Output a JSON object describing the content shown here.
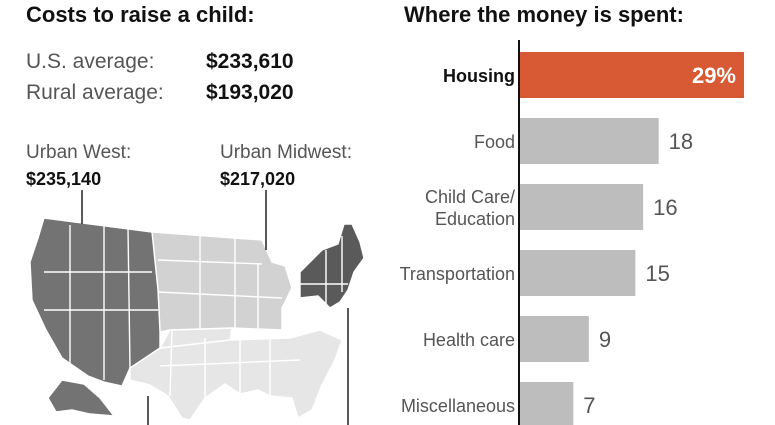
{
  "left": {
    "title": "Costs to raise a child:",
    "averages": [
      {
        "label": "U.S. average:",
        "value": "$233,610"
      },
      {
        "label": "Rural average:",
        "value": "$193,020"
      }
    ],
    "regions": [
      {
        "name": "Urban West:",
        "value": "$235,140"
      },
      {
        "name": "Urban Midwest:",
        "value": "$217,020"
      }
    ],
    "map_colors": {
      "west": "#737373",
      "northeast": "#5a5a5a",
      "midwest": "#d2d2d2",
      "south": "#e6e6e6",
      "border": "#ffffff"
    }
  },
  "chart_data": {
    "type": "bar",
    "orientation": "horizontal",
    "title": "Where the money is spent:",
    "categories": [
      "Housing",
      "Food",
      "Child Care/\nEducation",
      "Transportation",
      "Health care",
      "Miscellaneous"
    ],
    "values": [
      29,
      18,
      16,
      15,
      9,
      7
    ],
    "value_labels": [
      "29%",
      "18",
      "16",
      "15",
      "9",
      "7"
    ],
    "highlight_index": 0,
    "colors": {
      "highlight": "#d85a35",
      "bar": "#bdbdbd",
      "axis": "#111111",
      "label": "#555555"
    }
  }
}
